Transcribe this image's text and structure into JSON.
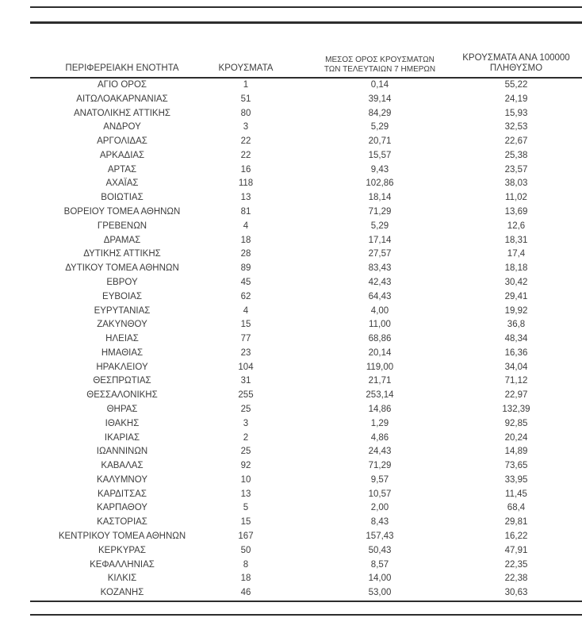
{
  "page": {
    "background": "#ffffff",
    "text_color": "#3d3d3d",
    "rule_color": "#2d2d2d"
  },
  "table": {
    "columns": [
      {
        "label": "ΠΕΡΙΦΕΡΕΙΑΚΗ ΕΝΟΤΗΤΑ"
      },
      {
        "label": "ΚΡΟΥΣΜΑΤΑ"
      },
      {
        "label_line1": "ΜΕΣΟΣ ΟΡΟΣ ΚΡΟΥΣΜΑΤΩΝ",
        "label_line2": "ΤΩΝ ΤΕΛΕΥΤΑΙΩΝ 7 ΗΜΕΡΩΝ"
      },
      {
        "label_line1": "ΚΡΟΥΣΜΑΤΑ ΑΝΑ 100000",
        "label_line2": "ΠΛΗΘΥΣΜΟ"
      }
    ],
    "rows": [
      [
        "ΑΓΙΟ ΟΡΟΣ",
        "1",
        "0,14",
        "55,22"
      ],
      [
        "ΑΙΤΩΛΟΑΚΑΡΝΑΝΙΑΣ",
        "51",
        "39,14",
        "24,19"
      ],
      [
        "ΑΝΑΤΟΛΙΚΗΣ ΑΤΤΙΚΗΣ",
        "80",
        "84,29",
        "15,93"
      ],
      [
        "ΑΝΔΡΟΥ",
        "3",
        "5,29",
        "32,53"
      ],
      [
        "ΑΡΓΟΛΙΔΑΣ",
        "22",
        "20,71",
        "22,67"
      ],
      [
        "ΑΡΚΑΔΙΑΣ",
        "22",
        "15,57",
        "25,38"
      ],
      [
        "ΑΡΤΑΣ",
        "16",
        "9,43",
        "23,57"
      ],
      [
        "ΑΧΑΪΑΣ",
        "118",
        "102,86",
        "38,03"
      ],
      [
        "ΒΟΙΩΤΙΑΣ",
        "13",
        "18,14",
        "11,02"
      ],
      [
        "ΒΟΡΕΙΟΥ ΤΟΜΕΑ ΑΘΗΝΩΝ",
        "81",
        "71,29",
        "13,69"
      ],
      [
        "ΓΡΕΒΕΝΩΝ",
        "4",
        "5,29",
        "12,6"
      ],
      [
        "ΔΡΑΜΑΣ",
        "18",
        "17,14",
        "18,31"
      ],
      [
        "ΔΥΤΙΚΗΣ ΑΤΤΙΚΗΣ",
        "28",
        "27,57",
        "17,4"
      ],
      [
        "ΔΥΤΙΚΟΥ ΤΟΜΕΑ ΑΘΗΝΩΝ",
        "89",
        "83,43",
        "18,18"
      ],
      [
        "ΕΒΡΟΥ",
        "45",
        "42,43",
        "30,42"
      ],
      [
        "ΕΥΒΟΙΑΣ",
        "62",
        "64,43",
        "29,41"
      ],
      [
        "ΕΥΡΥΤΑΝΙΑΣ",
        "4",
        "4,00",
        "19,92"
      ],
      [
        "ΖΑΚΥΝΘΟΥ",
        "15",
        "11,00",
        "36,8"
      ],
      [
        "ΗΛΕΙΑΣ",
        "77",
        "68,86",
        "48,34"
      ],
      [
        "ΗΜΑΘΙΑΣ",
        "23",
        "20,14",
        "16,36"
      ],
      [
        "ΗΡΑΚΛΕΙΟΥ",
        "104",
        "119,00",
        "34,04"
      ],
      [
        "ΘΕΣΠΡΩΤΙΑΣ",
        "31",
        "21,71",
        "71,12"
      ],
      [
        "ΘΕΣΣΑΛΟΝΙΚΗΣ",
        "255",
        "253,14",
        "22,97"
      ],
      [
        "ΘΗΡΑΣ",
        "25",
        "14,86",
        "132,39"
      ],
      [
        "ΙΘΑΚΗΣ",
        "3",
        "1,29",
        "92,85"
      ],
      [
        "ΙΚΑΡΙΑΣ",
        "2",
        "4,86",
        "20,24"
      ],
      [
        "ΙΩΑΝΝΙΝΩΝ",
        "25",
        "24,43",
        "14,89"
      ],
      [
        "ΚΑΒΑΛΑΣ",
        "92",
        "71,29",
        "73,65"
      ],
      [
        "ΚΑΛΥΜΝΟΥ",
        "10",
        "9,57",
        "33,95"
      ],
      [
        "ΚΑΡΔΙΤΣΑΣ",
        "13",
        "10,57",
        "11,45"
      ],
      [
        "ΚΑΡΠΑΘΟΥ",
        "5",
        "2,00",
        "68,4"
      ],
      [
        "ΚΑΣΤΟΡΙΑΣ",
        "15",
        "8,43",
        "29,81"
      ],
      [
        "ΚΕΝΤΡΙΚΟΥ ΤΟΜΕΑ ΑΘΗΝΩΝ",
        "167",
        "157,43",
        "16,22"
      ],
      [
        "ΚΕΡΚΥΡΑΣ",
        "50",
        "50,43",
        "47,91"
      ],
      [
        "ΚΕΦΑΛΛΗΝΙΑΣ",
        "8",
        "8,57",
        "22,35"
      ],
      [
        "ΚΙΛΚΙΣ",
        "18",
        "14,00",
        "22,38"
      ],
      [
        "ΚΟΖΑΝΗΣ",
        "46",
        "53,00",
        "30,63"
      ]
    ]
  }
}
